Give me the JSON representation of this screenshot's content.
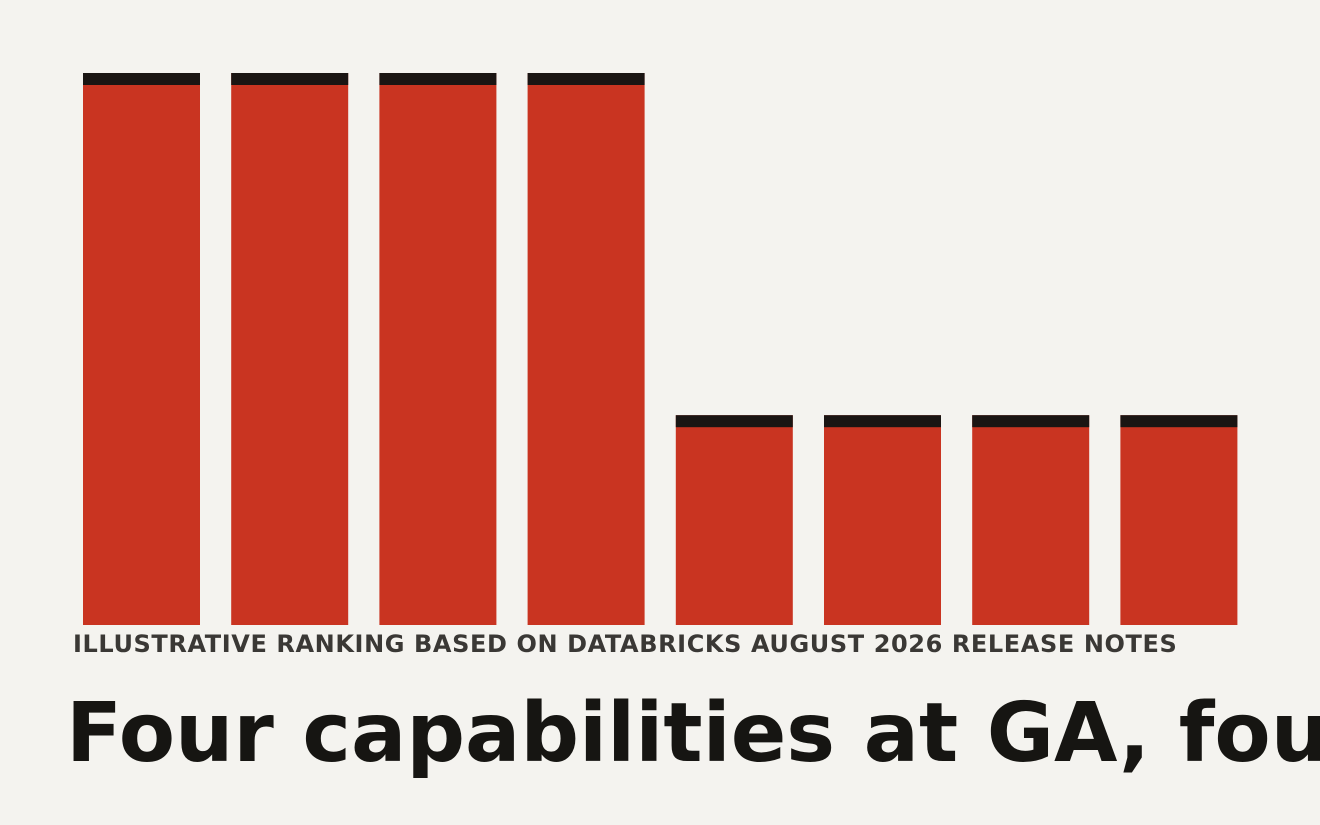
{
  "colors": {
    "background": "#f4f3ef",
    "bar": "#c93421",
    "bar_cap": "#1a1513",
    "caption": "#3a3835",
    "headline": "#161512"
  },
  "chart_data": {
    "type": "bar",
    "title": "Four capabilities at GA, fou",
    "subtitle": "ILLUSTRATIVE RANKING BASED ON DATABRICKS AUGUST 2026 RELEASE NOTES",
    "xlabel": "",
    "ylabel": "",
    "categories": [
      "",
      "",
      "",
      "",
      "",
      "",
      "",
      ""
    ],
    "values": [
      100,
      100,
      100,
      100,
      38,
      38,
      38,
      38
    ],
    "ylim": [
      0,
      100
    ],
    "grid": false,
    "legend": "none"
  }
}
